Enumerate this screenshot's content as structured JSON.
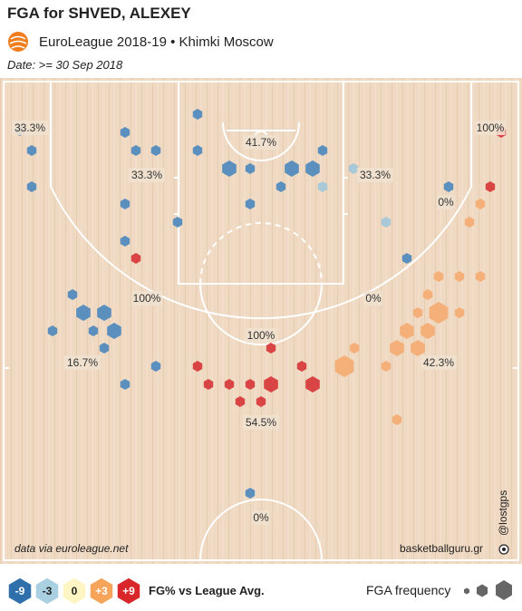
{
  "header": {
    "title": "FGA for SHVED, ALEXEY",
    "league_line": "EuroLeague 2018-19 • Khimki Moscow",
    "date_line": "Date: >= 30 Sep 2018"
  },
  "footer": {
    "source": "data via euroleague.net",
    "site": "basketballguru.gr",
    "handle": "@lostgps"
  },
  "legend": {
    "title": "FG% vs League Avg.",
    "freq_label": "FGA frequency",
    "steps": [
      {
        "label": "-9",
        "color": "#2f6fab"
      },
      {
        "label": "-3",
        "color": "#a8d0e0"
      },
      {
        "label": "0",
        "color": "#fdf6c4"
      },
      {
        "label": "+3",
        "color": "#f5a45a"
      },
      {
        "label": "+9",
        "color": "#d9262a"
      }
    ]
  },
  "colors": {
    "court": "#efd9c2",
    "lines": "#ffffff",
    "strong_blue": "#5b8fbe",
    "light_blue": "#a9c8d8",
    "orange": "#f5b07a",
    "red": "#d94545"
  },
  "chart_data": {
    "type": "hexbin_shot_chart",
    "zones": [
      {
        "label": "33.3%"
      },
      {
        "label": "41.7%"
      },
      {
        "label": "100%"
      },
      {
        "label": "33.3%"
      },
      {
        "label": "33.3%"
      },
      {
        "label": "0%"
      },
      {
        "label": "100%"
      },
      {
        "label": "0%"
      },
      {
        "label": "100%"
      },
      {
        "label": "16.7%"
      },
      {
        "label": "42.3%"
      },
      {
        "label": "54.5%"
      },
      {
        "label": "0%"
      }
    ]
  }
}
